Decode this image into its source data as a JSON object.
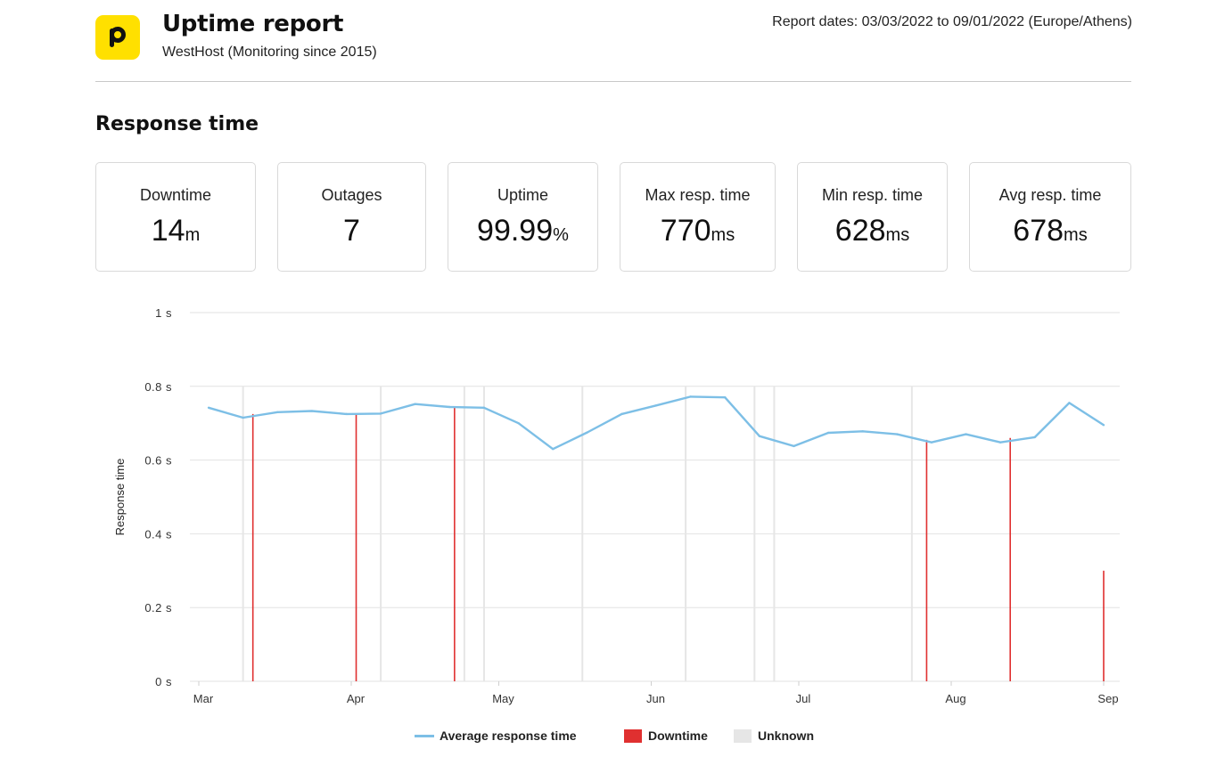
{
  "header": {
    "title": "Uptime report",
    "subtitle": "WestHost (Monitoring since 2015)",
    "report_dates": "Report dates: 03/03/2022 to 09/01/2022 (Europe/Athens)",
    "logo_icon": "p-logo-icon",
    "logo_color": "#ffe000"
  },
  "section": {
    "title": "Response time"
  },
  "stats": [
    {
      "label": "Downtime",
      "value": "14",
      "unit": "m"
    },
    {
      "label": "Outages",
      "value": "7",
      "unit": ""
    },
    {
      "label": "Uptime",
      "value": "99.99",
      "unit": "%"
    },
    {
      "label": "Max resp. time",
      "value": "770",
      "unit": "ms"
    },
    {
      "label": "Min resp. time",
      "value": "628",
      "unit": "ms"
    },
    {
      "label": "Avg resp. time",
      "value": "678",
      "unit": "ms"
    }
  ],
  "chart_data": {
    "type": "line",
    "ylabel": "Response time",
    "ylim": [
      0,
      1
    ],
    "y_ticks": [
      {
        "value": 0,
        "label": "0 s"
      },
      {
        "value": 0.2,
        "label": "0.2 s"
      },
      {
        "value": 0.4,
        "label": "0.4 s"
      },
      {
        "value": 0.6,
        "label": "0.6 s"
      },
      {
        "value": 0.8,
        "label": "0.8 s"
      },
      {
        "value": 1,
        "label": "1 s"
      }
    ],
    "x_domain": [
      "2022-03-01",
      "2022-09-01"
    ],
    "x_ticks": [
      {
        "date": "2022-03-01",
        "label": "Mar"
      },
      {
        "date": "2022-04-01",
        "label": "Apr"
      },
      {
        "date": "2022-05-01",
        "label": "May"
      },
      {
        "date": "2022-06-01",
        "label": "Jun"
      },
      {
        "date": "2022-07-01",
        "label": "Jul"
      },
      {
        "date": "2022-08-01",
        "label": "Aug"
      },
      {
        "date": "2022-09-01",
        "label": "Sep"
      }
    ],
    "grid": true,
    "legend_position": "bottom",
    "series": [
      {
        "name": "Average response time",
        "color": "#7dbfe6",
        "points": [
          [
            "2022-03-03",
            0.742
          ],
          [
            "2022-03-10",
            0.715
          ],
          [
            "2022-03-17",
            0.73
          ],
          [
            "2022-03-24",
            0.733
          ],
          [
            "2022-03-31",
            0.725
          ],
          [
            "2022-04-07",
            0.726
          ],
          [
            "2022-04-14",
            0.752
          ],
          [
            "2022-04-21",
            0.744
          ],
          [
            "2022-04-28",
            0.742
          ],
          [
            "2022-05-05",
            0.7
          ],
          [
            "2022-05-12",
            0.63
          ],
          [
            "2022-05-19",
            0.675
          ],
          [
            "2022-05-26",
            0.725
          ],
          [
            "2022-06-02",
            0.748
          ],
          [
            "2022-06-09",
            0.772
          ],
          [
            "2022-06-16",
            0.77
          ],
          [
            "2022-06-23",
            0.665
          ],
          [
            "2022-06-30",
            0.638
          ],
          [
            "2022-07-07",
            0.674
          ],
          [
            "2022-07-14",
            0.678
          ],
          [
            "2022-07-21",
            0.67
          ],
          [
            "2022-07-28",
            0.648
          ],
          [
            "2022-08-04",
            0.67
          ],
          [
            "2022-08-11",
            0.648
          ],
          [
            "2022-08-18",
            0.662
          ],
          [
            "2022-08-25",
            0.755
          ],
          [
            "2022-09-01",
            0.695
          ]
        ]
      }
    ],
    "downtime": {
      "name": "Downtime",
      "color": "#e03030",
      "events": [
        {
          "date": "2022-03-12",
          "value": 0.725
        },
        {
          "date": "2022-04-02",
          "value": 0.725
        },
        {
          "date": "2022-04-22",
          "value": 0.743
        },
        {
          "date": "2022-07-27",
          "value": 0.655
        },
        {
          "date": "2022-08-13",
          "value": 0.66
        },
        {
          "date": "2022-09-01",
          "value": 0.3
        }
      ]
    },
    "unknown": {
      "name": "Unknown",
      "color": "#e6e6e6",
      "dates": [
        "2022-03-10",
        "2022-04-07",
        "2022-04-24",
        "2022-04-28",
        "2022-05-18",
        "2022-06-08",
        "2022-06-22",
        "2022-06-26",
        "2022-07-24"
      ]
    }
  }
}
